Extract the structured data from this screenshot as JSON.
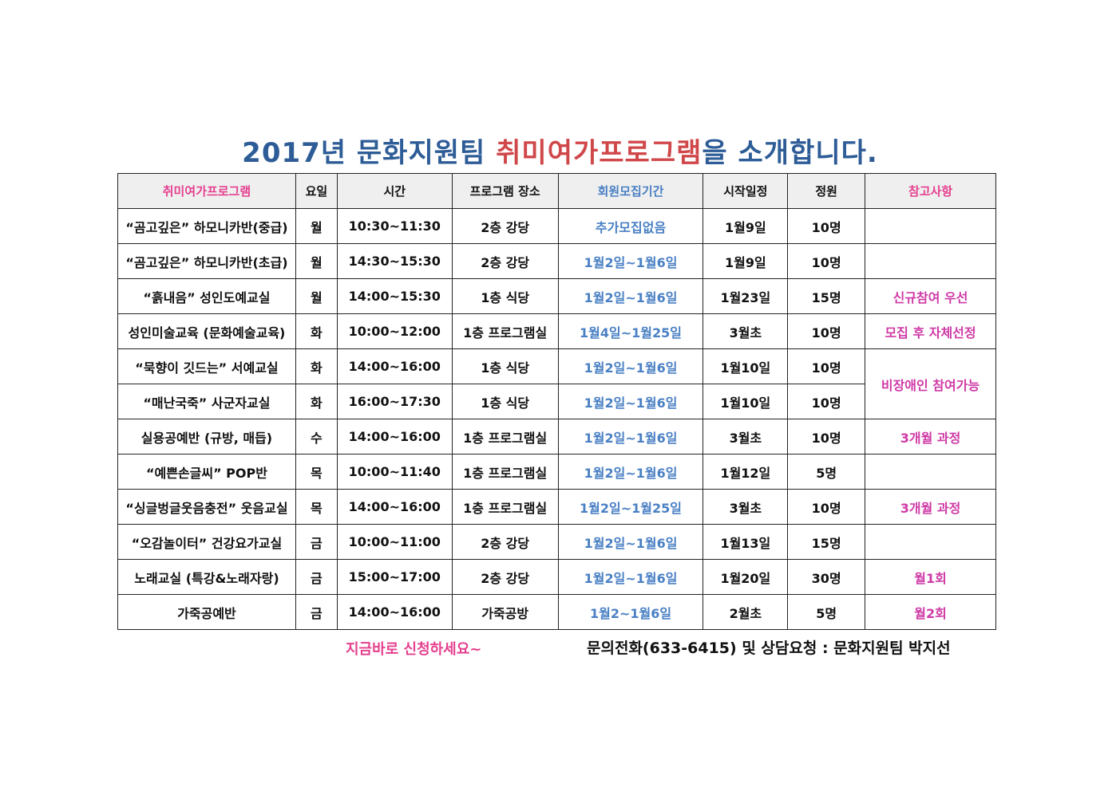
{
  "title": {
    "prefix": "2017년 문화지원팀 ",
    "highlight": "취미여가프로그램",
    "suffix": "을 소개합니다."
  },
  "colors": {
    "title_blue": "#2e5c97",
    "title_red": "#d0474a",
    "pink": "#e5408f",
    "blue": "#4a80c4",
    "magenta": "#cf3aa6"
  },
  "headers": [
    "취미여가프로그램",
    "요일",
    "시간",
    "프로그램 장소",
    "회원모집기간",
    "시작일정",
    "정원",
    "참고사항"
  ],
  "rows": [
    {
      "program": "“곰고깊은” 하모니카반(중급)",
      "day": "월",
      "time": "10:30~11:30",
      "place": "2층 강당",
      "recruit": "추가모집없음",
      "start": "1월9일",
      "capacity": "10명",
      "note": ""
    },
    {
      "program": "“곰고깊은” 하모니카반(초급)",
      "day": "월",
      "time": "14:30~15:30",
      "place": "2층 강당",
      "recruit": "1월2일~1월6일",
      "start": "1월9일",
      "capacity": "10명",
      "note": ""
    },
    {
      "program": "“흙내음” 성인도예교실",
      "day": "월",
      "time": "14:00~15:30",
      "place": "1층 식당",
      "recruit": "1월2일~1월6일",
      "start": "1월23일",
      "capacity": "15명",
      "note": "신규참여 우선"
    },
    {
      "program": "성인미술교육 (문화예술교육)",
      "day": "화",
      "time": "10:00~12:00",
      "place": "1층 프로그램실",
      "recruit": "1월4일~1월25일",
      "start": "3월초",
      "capacity": "10명",
      "note": "모집 후 자체선정"
    },
    {
      "program": "“묵향이 깃드는” 서예교실",
      "day": "화",
      "time": "14:00~16:00",
      "place": "1층 식당",
      "recruit": "1월2일~1월6일",
      "start": "1월10일",
      "capacity": "10명",
      "note": "비장애인 참여가능"
    },
    {
      "program": "“매난국죽” 사군자교실",
      "day": "화",
      "time": "16:00~17:30",
      "place": "1층 식당",
      "recruit": "1월2일~1월6일",
      "start": "1월10일",
      "capacity": "10명"
    },
    {
      "program": "실용공예반 (규방, 매듭)",
      "day": "수",
      "time": "14:00~16:00",
      "place": "1층 프로그램실",
      "recruit": "1월2일~1월6일",
      "start": "3월초",
      "capacity": "10명",
      "note": "3개월 과정"
    },
    {
      "program": "“예쁜손글씨” POP반",
      "day": "목",
      "time": "10:00~11:40",
      "place": "1층 프로그램실",
      "recruit": "1월2일~1월6일",
      "start": "1월12일",
      "capacity": "5명",
      "note": ""
    },
    {
      "program": "“싱글벙글웃음충전” 웃음교실",
      "day": "목",
      "time": "14:00~16:00",
      "place": "1층 프로그램실",
      "recruit": "1월2일~1월25일",
      "start": "3월초",
      "capacity": "10명",
      "note": "3개월 과정"
    },
    {
      "program": "“오감놀이터” 건강요가교실",
      "day": "금",
      "time": "10:00~11:00",
      "place": "2층 강당",
      "recruit": "1월2일~1월6일",
      "start": "1월13일",
      "capacity": "15명",
      "note": ""
    },
    {
      "program": "노래교실 (특강&노래자랑)",
      "day": "금",
      "time": "15:00~17:00",
      "place": "2층 강당",
      "recruit": "1월2일~1월6일",
      "start": "1월20일",
      "capacity": "30명",
      "note": "월1회"
    },
    {
      "program": "가죽공예반",
      "day": "금",
      "time": "14:00~16:00",
      "place": "가죽공방",
      "recruit": "1월2~1월6일",
      "start": "2월초",
      "capacity": "5명",
      "note": "월2회"
    }
  ],
  "footer": {
    "apply": "지금바로 신청하세요~",
    "contact": "문의전화(633-6415) 및 상담요청 : 문화지원팀 박지선"
  }
}
